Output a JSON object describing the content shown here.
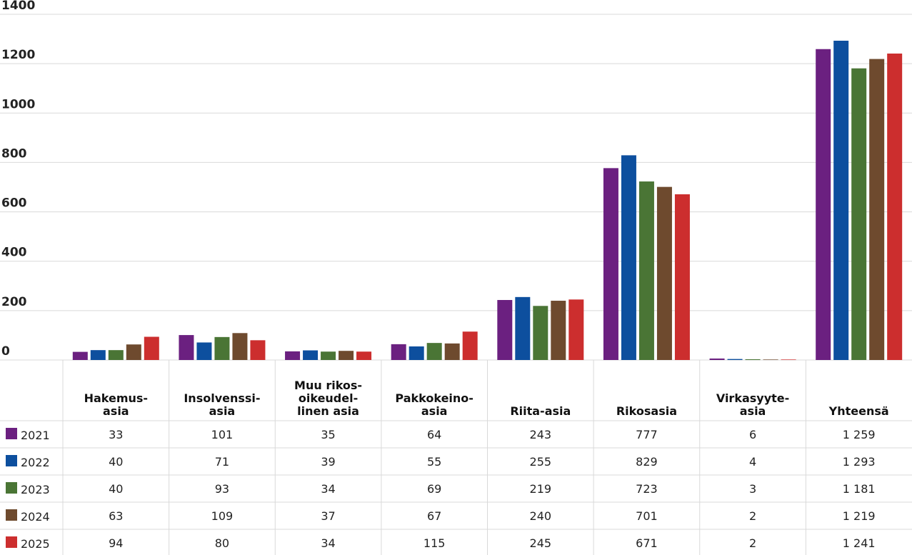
{
  "chart_data": {
    "type": "bar",
    "title": "",
    "xlabel": "",
    "ylabel": "",
    "ylim": [
      0,
      1400
    ],
    "yticks": [
      0,
      200,
      400,
      600,
      800,
      1000,
      1200,
      1400
    ],
    "grid": true,
    "legend": "table-left",
    "categories": [
      [
        "Hakemus-",
        "asia"
      ],
      [
        "Insolvenssi-",
        "asia"
      ],
      [
        "Muu rikos-",
        "oikeudel-",
        "linen asia"
      ],
      [
        "Pakkokeino-",
        "asia"
      ],
      [
        "Riita-asia"
      ],
      [
        "Rikosasia"
      ],
      [
        "Virkasyyte-",
        "asia"
      ],
      [
        "Yhteensä"
      ]
    ],
    "series": [
      {
        "name": "2021",
        "color": "#6b2080",
        "values": [
          33,
          101,
          35,
          64,
          243,
          777,
          6,
          1259
        ],
        "labels": [
          "33",
          "101",
          "35",
          "64",
          "243",
          "777",
          "6",
          "1 259"
        ]
      },
      {
        "name": "2022",
        "color": "#0d4f9e",
        "values": [
          40,
          71,
          39,
          55,
          255,
          829,
          4,
          1293
        ],
        "labels": [
          "40",
          "71",
          "39",
          "55",
          "255",
          "829",
          "4",
          "1 293"
        ]
      },
      {
        "name": "2023",
        "color": "#4a7535",
        "values": [
          40,
          93,
          34,
          69,
          219,
          723,
          3,
          1181
        ],
        "labels": [
          "40",
          "93",
          "34",
          "69",
          "219",
          "723",
          "3",
          "1 181"
        ]
      },
      {
        "name": "2024",
        "color": "#6e4a2e",
        "values": [
          63,
          109,
          37,
          67,
          240,
          701,
          2,
          1219
        ],
        "labels": [
          "63",
          "109",
          "37",
          "67",
          "240",
          "701",
          "2",
          "1 219"
        ]
      },
      {
        "name": "2025",
        "color": "#cc2e2e",
        "values": [
          94,
          80,
          34,
          115,
          245,
          671,
          2,
          1241
        ],
        "labels": [
          "94",
          "80",
          "34",
          "115",
          "245",
          "671",
          "2",
          "1 241"
        ]
      }
    ]
  }
}
